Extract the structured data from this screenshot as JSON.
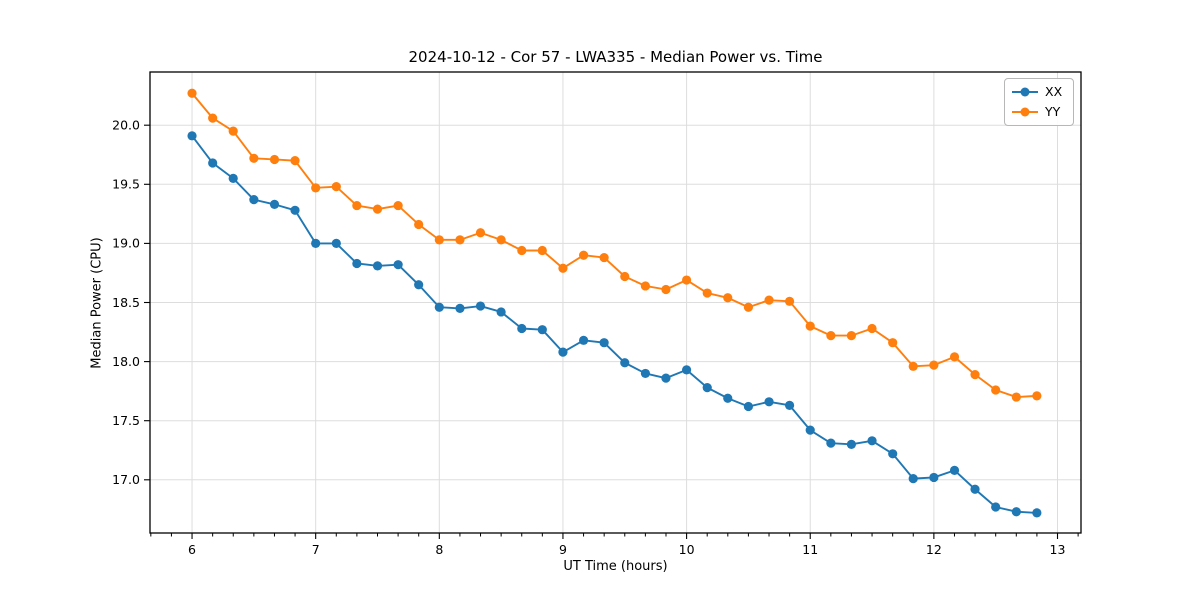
{
  "figure": {
    "background": "#ffffff",
    "title": "2024-10-12 - Cor 57 - LWA335 - Median Power vs. Time"
  },
  "chart_data": {
    "type": "line",
    "title": "2024-10-12 - Cor 57 - LWA335 - Median Power vs. Time",
    "xlabel": "UT Time (hours)",
    "ylabel": "Median Power (CPU)",
    "xlim": [
      5.66,
      13.19
    ],
    "ylim": [
      16.55,
      20.45
    ],
    "x_major_ticks": [
      6,
      7,
      8,
      9,
      10,
      11,
      12,
      13
    ],
    "x_minor_tick_step": 0.1667,
    "y_major_ticks": [
      17.0,
      17.5,
      18.0,
      18.5,
      19.0,
      19.5,
      20.0
    ],
    "grid": true,
    "grid_color": "#dddddd",
    "legend_position": "upper right",
    "marker": "circle",
    "x": [
      6.0,
      6.167,
      6.333,
      6.5,
      6.667,
      6.833,
      7.0,
      7.167,
      7.333,
      7.5,
      7.667,
      7.833,
      8.0,
      8.167,
      8.333,
      8.5,
      8.667,
      8.833,
      9.0,
      9.167,
      9.333,
      9.5,
      9.667,
      9.833,
      10.0,
      10.167,
      10.333,
      10.5,
      10.667,
      10.833,
      11.0,
      11.167,
      11.333,
      11.5,
      11.667,
      11.833,
      12.0,
      12.167,
      12.333,
      12.5,
      12.667,
      12.833
    ],
    "series": [
      {
        "name": "XX",
        "color": "#1f77b4",
        "values": [
          19.91,
          19.68,
          19.55,
          19.37,
          19.33,
          19.28,
          19.0,
          19.0,
          18.83,
          18.81,
          18.82,
          18.65,
          18.46,
          18.45,
          18.47,
          18.42,
          18.28,
          18.27,
          18.08,
          18.18,
          18.16,
          17.99,
          17.9,
          17.86,
          17.93,
          17.78,
          17.69,
          17.62,
          17.66,
          17.63,
          17.42,
          17.31,
          17.3,
          17.33,
          17.22,
          17.01,
          17.02,
          17.08,
          16.92,
          16.77,
          16.73,
          16.72
        ]
      },
      {
        "name": "YY",
        "color": "#ff7f0e",
        "values": [
          20.27,
          20.06,
          19.95,
          19.72,
          19.71,
          19.7,
          19.47,
          19.48,
          19.32,
          19.29,
          19.32,
          19.16,
          19.03,
          19.03,
          19.09,
          19.03,
          18.94,
          18.94,
          18.79,
          18.9,
          18.88,
          18.72,
          18.64,
          18.61,
          18.69,
          18.58,
          18.54,
          18.46,
          18.52,
          18.51,
          18.3,
          18.22,
          18.22,
          18.28,
          18.16,
          17.96,
          17.97,
          18.04,
          17.89,
          17.76,
          17.7,
          17.71
        ]
      }
    ]
  }
}
